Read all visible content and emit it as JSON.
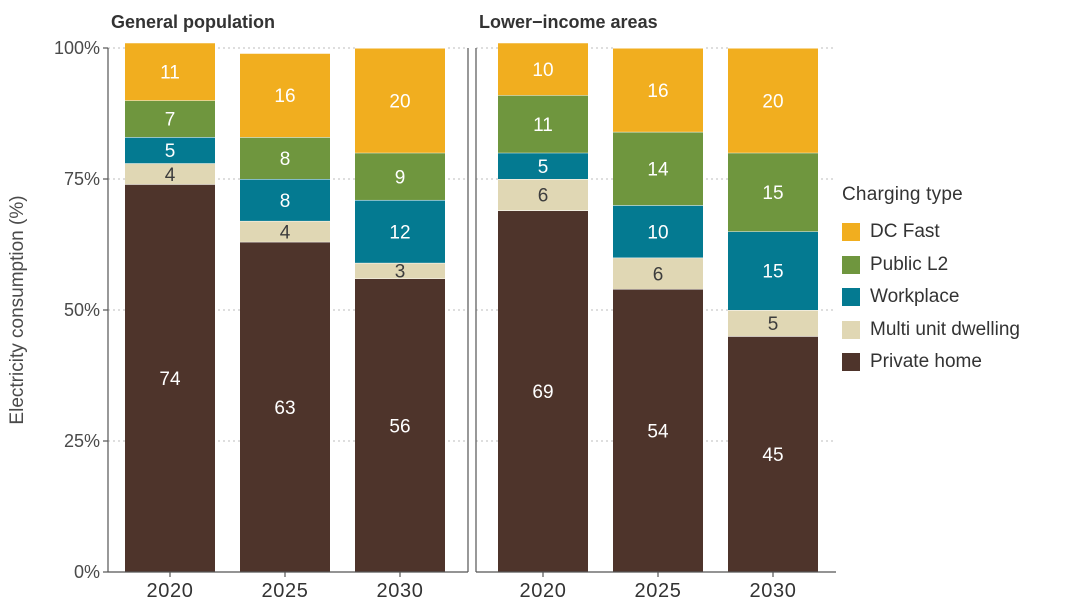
{
  "chart_data": {
    "type": "bar",
    "stacked": true,
    "ylabel": "Electricity consumption (%)",
    "ylim": [
      0,
      100
    ],
    "yticks": [
      "0%",
      "25%",
      "50%",
      "75%",
      "100%"
    ],
    "grid": "horizontal dotted",
    "legend": {
      "title": "Charging type",
      "placement": "right",
      "order": [
        "DC Fast",
        "Public L2",
        "Workplace",
        "Multi unit dwelling",
        "Private home"
      ]
    },
    "colors": {
      "Private home": "#4e342b",
      "Multi unit dwelling": "#e0d7b4",
      "Workplace": "#047a91",
      "Public L2": "#6f963e",
      "DC Fast": "#f1ae1f"
    },
    "panels": [
      {
        "title": "General population",
        "categories": [
          "2020",
          "2025",
          "2030"
        ],
        "series": [
          {
            "name": "Private home",
            "values": [
              74,
              63,
              56
            ]
          },
          {
            "name": "Multi unit dwelling",
            "values": [
              4,
              4,
              3
            ]
          },
          {
            "name": "Workplace",
            "values": [
              5,
              8,
              12
            ]
          },
          {
            "name": "Public L2",
            "values": [
              7,
              8,
              9
            ]
          },
          {
            "name": "DC Fast",
            "values": [
              11,
              16,
              20
            ]
          }
        ]
      },
      {
        "title": "Lower−income areas",
        "categories": [
          "2020",
          "2025",
          "2030"
        ],
        "series": [
          {
            "name": "Private home",
            "values": [
              69,
              54,
              45
            ]
          },
          {
            "name": "Multi unit dwelling",
            "values": [
              6,
              6,
              5
            ]
          },
          {
            "name": "Workplace",
            "values": [
              5,
              10,
              15
            ]
          },
          {
            "name": "Public L2",
            "values": [
              11,
              14,
              15
            ]
          },
          {
            "name": "DC Fast",
            "values": [
              10,
              16,
              20
            ]
          }
        ]
      }
    ]
  }
}
